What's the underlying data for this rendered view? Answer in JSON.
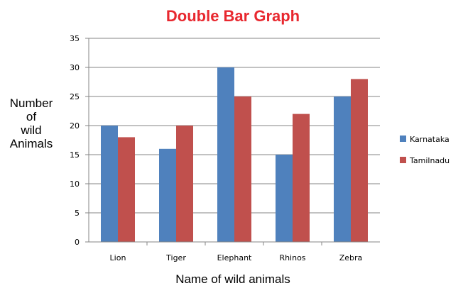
{
  "colors": {
    "title": "#e8282f",
    "karnataka": "#4f81bd",
    "tamilnadu": "#c0504d",
    "grid": "#868686",
    "axis": "#868686"
  },
  "chart_data": {
    "type": "bar",
    "title": "Double Bar Graph",
    "xlabel": "Name of wild animals",
    "ylabel_lines": [
      "Number",
      "of",
      "wild",
      "Animals"
    ],
    "categories": [
      "Lion",
      "Tiger",
      "Elephant",
      "Rhinos",
      "Zebra"
    ],
    "series": [
      {
        "name": "Karnataka",
        "values": [
          20,
          16,
          30,
          15,
          25
        ]
      },
      {
        "name": "Tamilnadu",
        "values": [
          18,
          20,
          25,
          22,
          28
        ]
      }
    ],
    "ylim": [
      0,
      35
    ],
    "yticks": [
      "0",
      "5",
      "10",
      "15",
      "20",
      "25",
      "30",
      "35"
    ],
    "grid": true,
    "legend_position": "right"
  }
}
